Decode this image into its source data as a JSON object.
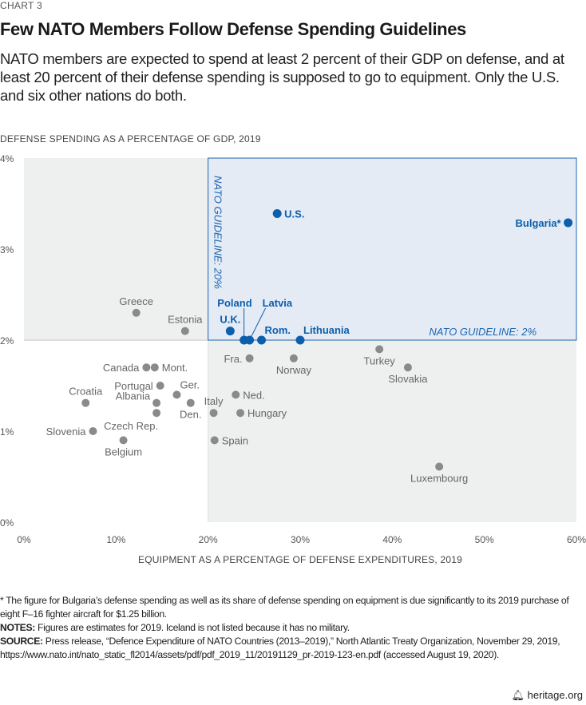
{
  "chart_label": "CHART 3",
  "title": "Few NATO Members Follow Defense Spending Guidelines",
  "subtitle": "NATO members are expected to spend at least 2 percent of their GDP on defense, and at least 20 percent of their defense spending is supposed to go to equipment. Only the U.S. and six other nations do both.",
  "chart_data": {
    "type": "scatter",
    "ylabel": "DEFENSE SPENDING AS A PERCENTAGE OF GDP, 2019",
    "xlabel": "EQUIPMENT AS A PERCENTAGE OF DEFENSE EXPENDITURES, 2019",
    "xlim": [
      0,
      60
    ],
    "ylim": [
      0,
      4
    ],
    "x_ticks": [
      0,
      10,
      20,
      30,
      40,
      50,
      60
    ],
    "x_tick_labels": [
      "0%",
      "10%",
      "20%",
      "30%",
      "40%",
      "50%",
      "60%"
    ],
    "y_ticks": [
      0,
      1,
      2,
      3,
      4
    ],
    "y_tick_labels": [
      "0%",
      "1%",
      "2%",
      "3%",
      "4%"
    ],
    "guidelines": {
      "x": 20,
      "y": 2,
      "x_label": "NATO GUIDELINE: 20%",
      "y_label": "NATO GUIDELINE: 2%"
    },
    "colors": {
      "meets": "#0b5fad",
      "other": "#8a8a8a",
      "guideline_box": "#e4ebf5",
      "guideline_border": "#1a64b1",
      "background": "#eef0ef"
    },
    "points": [
      {
        "name": "U.S.",
        "x": 27.5,
        "y": 3.39,
        "meets": true,
        "label_pos": "right"
      },
      {
        "name": "Bulgaria*",
        "x": 59.1,
        "y": 3.29,
        "meets": true,
        "label_pos": "left"
      },
      {
        "name": "U.K.",
        "x": 22.4,
        "y": 2.1,
        "meets": true,
        "label_pos": "top"
      },
      {
        "name": "Poland",
        "x": 23.9,
        "y": 2.0,
        "meets": true,
        "label_pos": "leader-left"
      },
      {
        "name": "Latvia",
        "x": 24.5,
        "y": 2.0,
        "meets": true,
        "label_pos": "leader-right"
      },
      {
        "name": "Rom.",
        "x": 25.8,
        "y": 2.0,
        "meets": true,
        "label_pos": "top-right"
      },
      {
        "name": "Lithuania",
        "x": 30.0,
        "y": 2.0,
        "meets": true,
        "label_pos": "top-right"
      },
      {
        "name": "Greece",
        "x": 12.2,
        "y": 2.3,
        "meets": false,
        "label_pos": "top"
      },
      {
        "name": "Estonia",
        "x": 17.5,
        "y": 2.1,
        "meets": false,
        "label_pos": "top"
      },
      {
        "name": "Fra.",
        "x": 24.5,
        "y": 1.8,
        "meets": false,
        "label_pos": "left"
      },
      {
        "name": "Norway",
        "x": 29.3,
        "y": 1.8,
        "meets": false,
        "label_pos": "bottom"
      },
      {
        "name": "Turkey",
        "x": 38.6,
        "y": 1.9,
        "meets": false,
        "label_pos": "bottom"
      },
      {
        "name": "Slovakia",
        "x": 41.7,
        "y": 1.7,
        "meets": false,
        "label_pos": "bottom"
      },
      {
        "name": "Luxembourg",
        "x": 45.1,
        "y": 0.61,
        "meets": false,
        "label_pos": "bottom"
      },
      {
        "name": "Canada",
        "x": 13.3,
        "y": 1.7,
        "meets": false,
        "label_pos": "left"
      },
      {
        "name": "Mont.",
        "x": 14.2,
        "y": 1.7,
        "meets": false,
        "label_pos": "right"
      },
      {
        "name": "Portugal",
        "x": 14.8,
        "y": 1.5,
        "meets": false,
        "label_pos": "left"
      },
      {
        "name": "Ger.",
        "x": 16.6,
        "y": 1.4,
        "meets": false,
        "label_pos": "top-right"
      },
      {
        "name": "Albania",
        "x": 14.4,
        "y": 1.31,
        "meets": false,
        "label_pos": "left-up"
      },
      {
        "name": "Czech Rep.",
        "x": 14.4,
        "y": 1.2,
        "meets": false,
        "label_pos": "bottom-left"
      },
      {
        "name": "Den.",
        "x": 18.1,
        "y": 1.31,
        "meets": false,
        "label_pos": "bottom"
      },
      {
        "name": "Croatia",
        "x": 6.7,
        "y": 1.31,
        "meets": false,
        "label_pos": "top"
      },
      {
        "name": "Slovenia",
        "x": 7.5,
        "y": 1.0,
        "meets": false,
        "label_pos": "left"
      },
      {
        "name": "Belgium",
        "x": 10.8,
        "y": 0.9,
        "meets": false,
        "label_pos": "bottom"
      },
      {
        "name": "Italy",
        "x": 20.6,
        "y": 1.2,
        "meets": false,
        "label_pos": "top"
      },
      {
        "name": "Ned.",
        "x": 23.0,
        "y": 1.4,
        "meets": false,
        "label_pos": "right"
      },
      {
        "name": "Hungary",
        "x": 23.5,
        "y": 1.2,
        "meets": false,
        "label_pos": "right"
      },
      {
        "name": "Spain",
        "x": 20.7,
        "y": 0.9,
        "meets": false,
        "label_pos": "right"
      }
    ]
  },
  "footnote": "* The figure for Bulgaria’s defense spending as well as its share of defense spending on equipment is due significantly to its 2019 purchase of eight F–16 fighter aircraft for $1.25 billion.",
  "notes_label": "NOTES:",
  "notes": " Figures are estimates for 2019. Iceland is not listed because it has no military.",
  "source_label": "SOURCE:",
  "source": " Press release, “Defence Expenditure of NATO Countries (2013–2019),” North Atlantic Treaty Organization, November 29, 2019, https://www.nato.int/nato_static_fl2014/assets/pdf/pdf_2019_11/20191129_pr-2019-123-en.pdf (accessed August 19, 2020).",
  "brand": "heritage.org",
  "brand_icon": "bell-icon"
}
